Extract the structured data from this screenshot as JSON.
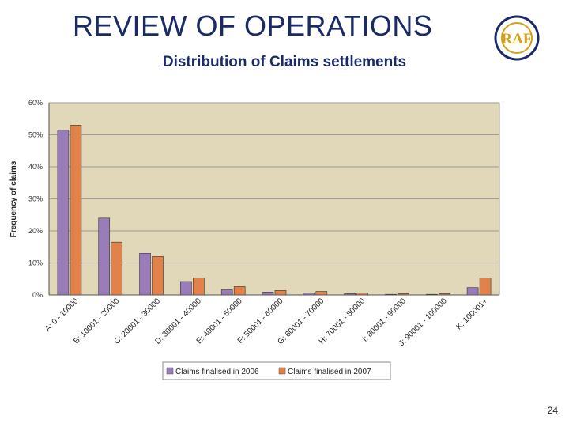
{
  "slide": {
    "title": "REVIEW OF OPERATIONS",
    "subtitle": "Distribution of Claims settlements",
    "page_number": "24"
  },
  "logo": {
    "text": "RAF",
    "icon": "raf-seal-logo",
    "colors": {
      "ring": "#1a2a66",
      "fill": "#d4a017"
    }
  },
  "colors": {
    "plot_bg": "#e0d8b8",
    "grid": "#9a9a9a",
    "series_2006": "#9a7cb8",
    "series_2007": "#e0824a"
  },
  "chart_data": {
    "type": "bar",
    "title": "",
    "xlabel": "",
    "ylabel": "Frequency of claims",
    "ylim": [
      0,
      60
    ],
    "yticks": [
      "0%",
      "10%",
      "20%",
      "30%",
      "40%",
      "50%",
      "60%"
    ],
    "grid": true,
    "legend": "bottom",
    "categories": [
      "A: 0 - 10000",
      "B: 10001 - 20000",
      "C: 20001 - 30000",
      "D: 30001 - 40000",
      "E: 40001 - 50000",
      "F: 50001 - 60000",
      "G: 60001 - 70000",
      "H: 70001 - 80000",
      "I: 80001 - 90000",
      "J: 90001 - 100000",
      "K: 100001+"
    ],
    "series": [
      {
        "name": "Claims finalised in 2006",
        "values": [
          51.5,
          24,
          13,
          4.2,
          1.6,
          0.9,
          0.6,
          0.4,
          0.2,
          0.2,
          2.3
        ]
      },
      {
        "name": "Claims finalised in 2007",
        "values": [
          53,
          16.5,
          12,
          5.3,
          2.6,
          1.4,
          1.1,
          0.6,
          0.4,
          0.4,
          5.3
        ]
      }
    ]
  }
}
